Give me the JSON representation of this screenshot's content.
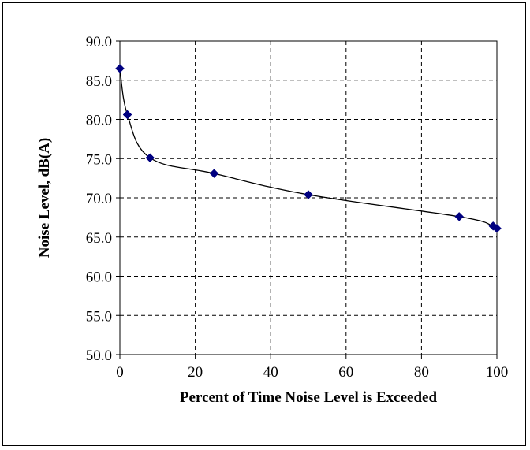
{
  "chart_data": {
    "type": "scatter",
    "title": "",
    "xlabel": "Percent of Time Noise Level is Exceeded",
    "ylabel": "Noise Level, dB(A)",
    "xlim": [
      0,
      100
    ],
    "ylim": [
      50,
      90
    ],
    "x_ticks": [
      0,
      20,
      40,
      60,
      80,
      100
    ],
    "x_tick_labels": [
      "0",
      "20",
      "40",
      "60",
      "80",
      "100"
    ],
    "y_ticks": [
      50,
      55,
      60,
      65,
      70,
      75,
      80,
      85,
      90
    ],
    "y_tick_labels": [
      "50.0",
      "55.0",
      "60.0",
      "65.0",
      "70.0",
      "75.0",
      "80.0",
      "85.0",
      "90.0"
    ],
    "grid": true,
    "grid_style": "dashed",
    "legend": "none",
    "series": [
      {
        "marker": "diamond",
        "smooth_line": true,
        "color": "#000080",
        "line_color": "#000000",
        "x": [
          0,
          2,
          8,
          25,
          50,
          90,
          99,
          100
        ],
        "y": [
          86.5,
          80.6,
          75.1,
          73.1,
          70.4,
          67.6,
          66.4,
          66.1
        ]
      }
    ]
  }
}
